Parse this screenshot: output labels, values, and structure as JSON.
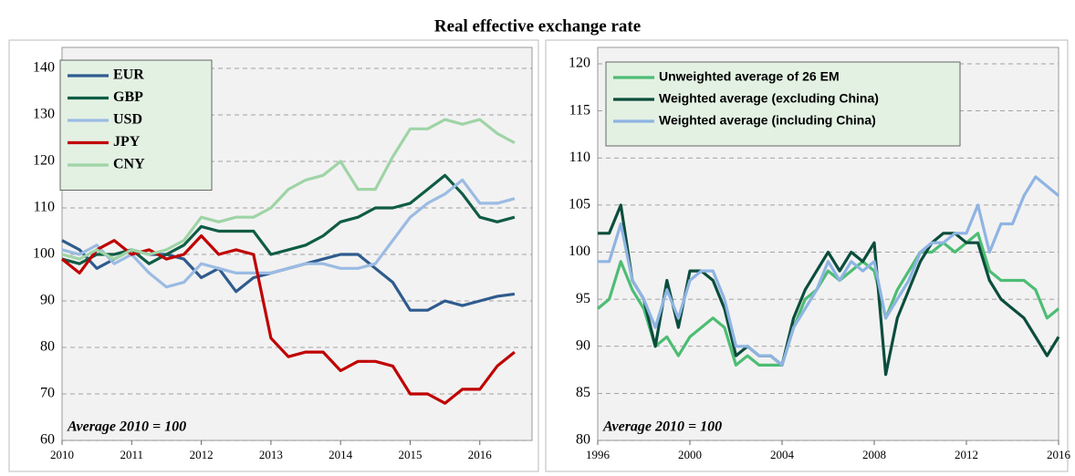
{
  "title": "Real effective exchange rate",
  "chart_data": [
    {
      "type": "line",
      "annotation": "Average 2010 = 100",
      "grid": true,
      "legend": "upper left",
      "xlim": [
        2010,
        2016.75
      ],
      "xticks": [
        2010,
        2011,
        2012,
        2013,
        2014,
        2015,
        2016
      ],
      "ylim": [
        60,
        140
      ],
      "yticks": [
        60,
        70,
        80,
        90,
        100,
        110,
        120,
        130,
        140
      ],
      "x": [
        2010,
        2010.25,
        2010.5,
        2010.75,
        2011,
        2011.25,
        2011.5,
        2011.75,
        2012,
        2012.25,
        2012.5,
        2012.75,
        2013,
        2013.25,
        2013.5,
        2013.75,
        2014,
        2014.25,
        2014.5,
        2014.75,
        2015,
        2015.25,
        2015.5,
        2015.75,
        2016,
        2016.25,
        2016.5
      ],
      "series": [
        {
          "name": "EUR",
          "color": "#2f5b8e",
          "values": [
            103,
            101,
            97,
            99,
            101,
            100,
            100,
            99,
            95,
            97,
            92,
            95,
            96,
            97,
            98,
            99,
            100,
            100,
            97,
            94,
            88,
            88,
            90,
            89,
            90,
            91,
            91.5
          ]
        },
        {
          "name": "GBP",
          "color": "#0f5c45",
          "values": [
            99,
            98,
            100,
            100,
            101,
            98,
            100,
            102,
            106,
            105,
            105,
            105,
            100,
            101,
            102,
            104,
            107,
            108,
            110,
            110,
            111,
            114,
            117,
            113,
            108,
            107,
            108
          ]
        },
        {
          "name": "USD",
          "color": "#9bbbe3",
          "values": [
            101,
            100,
            102,
            98,
            100,
            96,
            93,
            94,
            98,
            97,
            96,
            96,
            96,
            97,
            98,
            98,
            97,
            97,
            98,
            103,
            108,
            111,
            113,
            116,
            111,
            111,
            112
          ]
        },
        {
          "name": "JPY",
          "color": "#c00000",
          "values": [
            99,
            96,
            101,
            103,
            100,
            101,
            99,
            100,
            104,
            100,
            101,
            100,
            82,
            78,
            79,
            79,
            75,
            77,
            77,
            76,
            70,
            70,
            68,
            71,
            71,
            76,
            79
          ]
        },
        {
          "name": "CNY",
          "color": "#9fd4a6",
          "values": [
            100,
            99,
            101,
            99,
            101,
            100,
            101,
            103,
            108,
            107,
            108,
            108,
            110,
            114,
            116,
            117,
            120,
            114,
            114,
            121,
            127,
            127,
            129,
            128,
            129,
            126,
            124
          ]
        }
      ]
    },
    {
      "type": "line",
      "annotation": "Average 2010 = 100",
      "grid": true,
      "legend": "upper left",
      "xlim": [
        1996,
        2016
      ],
      "xticks": [
        1996,
        2000,
        2004,
        2008,
        2012,
        2016
      ],
      "ylim": [
        80,
        120
      ],
      "yticks": [
        80,
        85,
        90,
        95,
        100,
        105,
        110,
        115,
        120
      ],
      "x": [
        1996,
        1996.5,
        1997,
        1997.5,
        1998,
        1998.5,
        1999,
        1999.5,
        2000,
        2000.5,
        2001,
        2001.5,
        2002,
        2002.5,
        2003,
        2003.5,
        2004,
        2004.5,
        2005,
        2005.5,
        2006,
        2006.5,
        2007,
        2007.5,
        2008,
        2008.5,
        2009,
        2009.5,
        2010,
        2010.5,
        2011,
        2011.5,
        2012,
        2012.5,
        2013,
        2013.5,
        2014,
        2014.5,
        2015,
        2015.5,
        2016
      ],
      "series": [
        {
          "name": "Unweighted average of 26 EM",
          "color": "#4dbd74",
          "values": [
            94,
            95,
            99,
            96,
            94,
            90,
            91,
            89,
            91,
            92,
            93,
            92,
            88,
            89,
            88,
            88,
            88,
            92,
            95,
            96,
            98,
            97,
            98,
            99,
            98,
            93,
            96,
            98,
            100,
            100,
            101,
            100,
            101,
            102,
            98,
            97,
            97,
            97,
            96,
            93,
            94
          ]
        },
        {
          "name": "Weighted average (excluding China)",
          "color": "#0b4d3c",
          "values": [
            102,
            102,
            105,
            97,
            95,
            90,
            97,
            92,
            98,
            98,
            97,
            94,
            89,
            90,
            89,
            89,
            88,
            93,
            96,
            98,
            100,
            98,
            100,
            99,
            101,
            87,
            93,
            96,
            99,
            101,
            102,
            102,
            101,
            101,
            97,
            95,
            94,
            93,
            91,
            89,
            91
          ]
        },
        {
          "name": "Weighted average (including China)",
          "color": "#8fb4e3",
          "values": [
            99,
            99,
            103,
            97,
            95,
            92,
            96,
            93,
            97,
            98,
            98,
            95,
            90,
            90,
            89,
            89,
            88,
            92,
            94,
            96,
            99,
            97,
            99,
            98,
            99,
            93,
            95,
            97,
            100,
            101,
            101,
            102,
            102,
            105,
            100,
            103,
            103,
            106,
            108,
            107,
            106
          ]
        }
      ]
    }
  ]
}
